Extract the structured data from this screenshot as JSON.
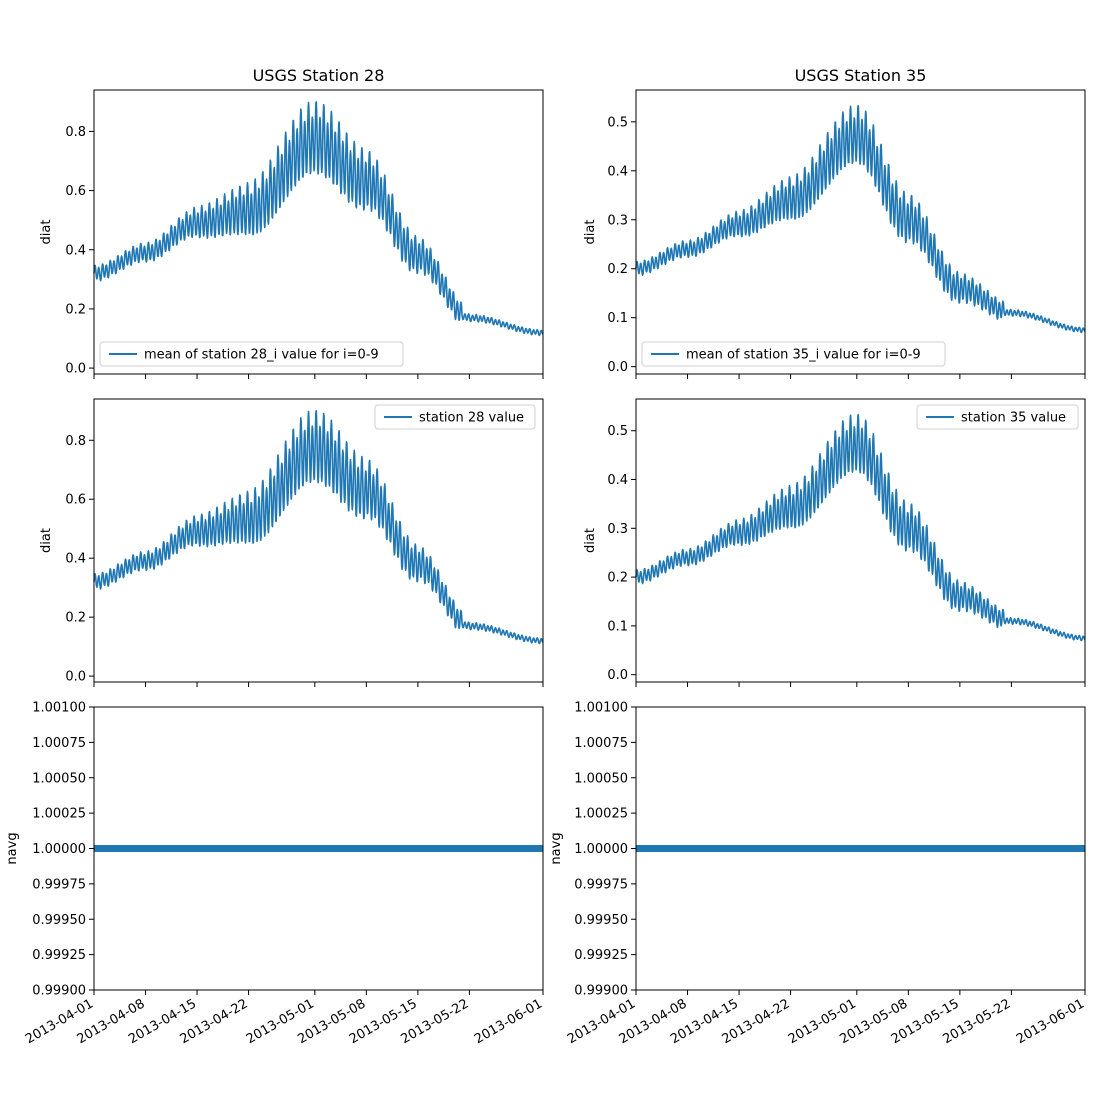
{
  "chart_data": [
    {
      "type": "line",
      "panel": "station-28-mean",
      "title": "USGS Station 28",
      "xlabel": "",
      "ylabel": "diat",
      "x": [
        "2013-04-01",
        "2013-04-08",
        "2013-04-15",
        "2013-04-22",
        "2013-05-01",
        "2013-05-08",
        "2013-05-15",
        "2013-05-22",
        "2013-06-01"
      ],
      "series": [
        {
          "name": "mean of station 28_i value for i=0-9",
          "values": [
            0.32,
            0.39,
            0.49,
            0.53,
            0.77,
            0.63,
            0.38,
            0.17,
            0.12
          ]
        }
      ],
      "xlim": [
        "2013-04-01",
        "2013-06-01"
      ],
      "ylim": [
        -0.02,
        0.94
      ],
      "yticks": [
        "0.0",
        "0.2",
        "0.4",
        "0.6",
        "0.8"
      ],
      "xticks": [],
      "legend": "lower-left",
      "grid": false
    },
    {
      "type": "line",
      "panel": "station-35-mean",
      "title": "USGS Station 35",
      "xlabel": "",
      "ylabel": "diat",
      "x": [
        "2013-04-01",
        "2013-04-08",
        "2013-04-15",
        "2013-04-22",
        "2013-05-01",
        "2013-05-08",
        "2013-05-15",
        "2013-05-22",
        "2013-06-01"
      ],
      "series": [
        {
          "name": "mean of station 35_i value for i=0-9",
          "values": [
            0.2,
            0.24,
            0.29,
            0.34,
            0.47,
            0.3,
            0.16,
            0.11,
            0.075
          ]
        }
      ],
      "xlim": [
        "2013-04-01",
        "2013-06-01"
      ],
      "ylim": [
        -0.015,
        0.565
      ],
      "yticks": [
        "0.0",
        "0.1",
        "0.2",
        "0.3",
        "0.4",
        "0.5"
      ],
      "xticks": [],
      "legend": "lower-left",
      "grid": false
    },
    {
      "type": "line",
      "panel": "station-28-value",
      "title": "",
      "xlabel": "",
      "ylabel": "diat",
      "x": [
        "2013-04-01",
        "2013-04-08",
        "2013-04-15",
        "2013-04-22",
        "2013-05-01",
        "2013-05-08",
        "2013-05-15",
        "2013-05-22",
        "2013-06-01"
      ],
      "series": [
        {
          "name": "station 28 value",
          "values": [
            0.32,
            0.39,
            0.49,
            0.53,
            0.77,
            0.63,
            0.38,
            0.17,
            0.12
          ]
        }
      ],
      "xlim": [
        "2013-04-01",
        "2013-06-01"
      ],
      "ylim": [
        -0.02,
        0.94
      ],
      "yticks": [
        "0.0",
        "0.2",
        "0.4",
        "0.6",
        "0.8"
      ],
      "xticks": [],
      "legend": "upper-right",
      "grid": false
    },
    {
      "type": "line",
      "panel": "station-35-value",
      "title": "",
      "xlabel": "",
      "ylabel": "diat",
      "x": [
        "2013-04-01",
        "2013-04-08",
        "2013-04-15",
        "2013-04-22",
        "2013-05-01",
        "2013-05-08",
        "2013-05-15",
        "2013-05-22",
        "2013-06-01"
      ],
      "series": [
        {
          "name": "station 35 value",
          "values": [
            0.2,
            0.24,
            0.29,
            0.34,
            0.47,
            0.3,
            0.16,
            0.11,
            0.075
          ]
        }
      ],
      "xlim": [
        "2013-04-01",
        "2013-06-01"
      ],
      "ylim": [
        -0.015,
        0.565
      ],
      "yticks": [
        "0.0",
        "0.1",
        "0.2",
        "0.3",
        "0.4",
        "0.5"
      ],
      "xticks": [],
      "legend": "upper-right",
      "grid": false
    },
    {
      "type": "line",
      "panel": "station-28-navg",
      "title": "",
      "xlabel": "",
      "ylabel": "navg",
      "x": [
        "2013-04-01",
        "2013-06-01"
      ],
      "series": [
        {
          "values": [
            1.0,
            1.0
          ]
        }
      ],
      "xlim": [
        "2013-04-01",
        "2013-06-01"
      ],
      "ylim": [
        0.999,
        1.001
      ],
      "yticks": [
        "0.99900",
        "0.99925",
        "0.99950",
        "0.99975",
        "1.00000",
        "1.00025",
        "1.00050",
        "1.00075",
        "1.00100"
      ],
      "xticks": [
        "2013-04-01",
        "2013-04-08",
        "2013-04-15",
        "2013-04-22",
        "2013-05-01",
        "2013-05-08",
        "2013-05-15",
        "2013-05-22",
        "2013-06-01"
      ],
      "legend": "none",
      "grid": false
    },
    {
      "type": "line",
      "panel": "station-35-navg",
      "title": "",
      "xlabel": "",
      "ylabel": "navg",
      "x": [
        "2013-04-01",
        "2013-06-01"
      ],
      "series": [
        {
          "values": [
            1.0,
            1.0
          ]
        }
      ],
      "xlim": [
        "2013-04-01",
        "2013-06-01"
      ],
      "ylim": [
        0.999,
        1.001
      ],
      "yticks": [
        "0.99900",
        "0.99925",
        "0.99950",
        "0.99975",
        "1.00000",
        "1.00025",
        "1.00050",
        "1.00075",
        "1.00100"
      ],
      "xticks": [
        "2013-04-01",
        "2013-04-08",
        "2013-04-15",
        "2013-04-22",
        "2013-05-01",
        "2013-05-08",
        "2013-05-15",
        "2013-05-22",
        "2013-06-01"
      ],
      "legend": "none",
      "grid": false
    }
  ],
  "colors": {
    "series": "#1f77b4",
    "axes": "#000000",
    "legend_border": "#d0d0d0"
  }
}
